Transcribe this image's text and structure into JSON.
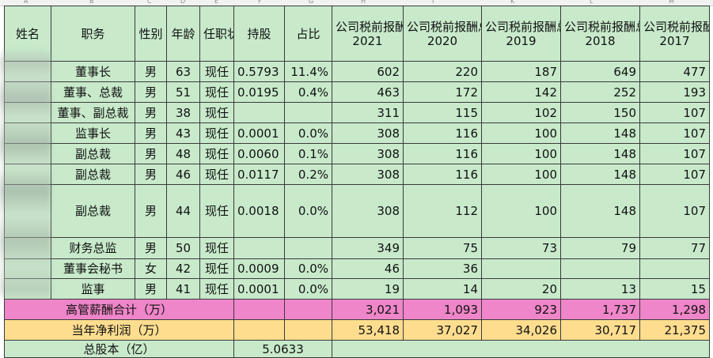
{
  "column_letters": [
    "A",
    "B",
    "C",
    "D",
    "E",
    "F",
    "G",
    "H",
    "I",
    "K",
    "L",
    "M"
  ],
  "header": {
    "name": "姓名",
    "position": "职务",
    "gender": "性别",
    "age": "年龄",
    "status": "任职状态",
    "holdings": "持股",
    "ratio": "占比",
    "pay_title": "公司税前报酬总额",
    "years": [
      "2021",
      "2020",
      "2019",
      "2018",
      "2017"
    ]
  },
  "rows": [
    {
      "position": "董事长",
      "gender": "男",
      "age": "63",
      "status": "现任",
      "holdings": "0.5793",
      "ratio": "11.4%",
      "pay": [
        "602",
        "220",
        "187",
        "649",
        "477"
      ]
    },
    {
      "position": "董事、总裁",
      "gender": "男",
      "age": "51",
      "status": "现任",
      "holdings": "0.0195",
      "ratio": "0.4%",
      "pay": [
        "463",
        "172",
        "142",
        "252",
        "193"
      ]
    },
    {
      "position": "董事、副总裁",
      "gender": "男",
      "age": "38",
      "status": "现任",
      "holdings": "",
      "ratio": "",
      "pay": [
        "311",
        "115",
        "102",
        "150",
        "107"
      ]
    },
    {
      "position": "监事长",
      "gender": "男",
      "age": "43",
      "status": "现任",
      "holdings": "0.0001",
      "ratio": "0.0%",
      "pay": [
        "308",
        "116",
        "100",
        "148",
        "107"
      ]
    },
    {
      "position": "副总裁",
      "gender": "男",
      "age": "48",
      "status": "现任",
      "holdings": "0.0060",
      "ratio": "0.1%",
      "pay": [
        "308",
        "116",
        "100",
        "148",
        "107"
      ]
    },
    {
      "position": "副总裁",
      "gender": "男",
      "age": "46",
      "status": "现任",
      "holdings": "0.0117",
      "ratio": "0.2%",
      "pay": [
        "308",
        "116",
        "100",
        "148",
        "107"
      ]
    },
    {
      "position": "副总裁",
      "gender": "男",
      "age": "44",
      "status": "现任",
      "holdings": "0.0018",
      "ratio": "0.0%",
      "pay": [
        "308",
        "112",
        "100",
        "148",
        "107"
      ]
    },
    {
      "position": "财务总监",
      "gender": "男",
      "age": "50",
      "status": "现任",
      "holdings": "",
      "ratio": "",
      "pay": [
        "349",
        "75",
        "73",
        "79",
        "77"
      ]
    },
    {
      "position": "董事会秘书",
      "gender": "女",
      "age": "42",
      "status": "现任",
      "holdings": "0.0009",
      "ratio": "0.0%",
      "pay": [
        "46",
        "36",
        "",
        "",
        ""
      ]
    },
    {
      "position": "监事",
      "gender": "男",
      "age": "41",
      "status": "现任",
      "holdings": "0.0001",
      "ratio": "0.0%",
      "pay": [
        "19",
        "14",
        "20",
        "13",
        "15"
      ]
    }
  ],
  "total": {
    "label": "高管薪酬合计（万）",
    "values": [
      "3,021",
      "1,093",
      "923",
      "1,737",
      "1,298"
    ],
    "color": "#ef86c9"
  },
  "profit": {
    "label": "当年净利润（万）",
    "values": [
      "53,418",
      "37,027",
      "34,026",
      "30,717",
      "21,375"
    ],
    "color": "#fedd8f"
  },
  "shares": {
    "label": "总股本（亿）",
    "value": "5.0633"
  },
  "cell_color": "#c8eacb"
}
